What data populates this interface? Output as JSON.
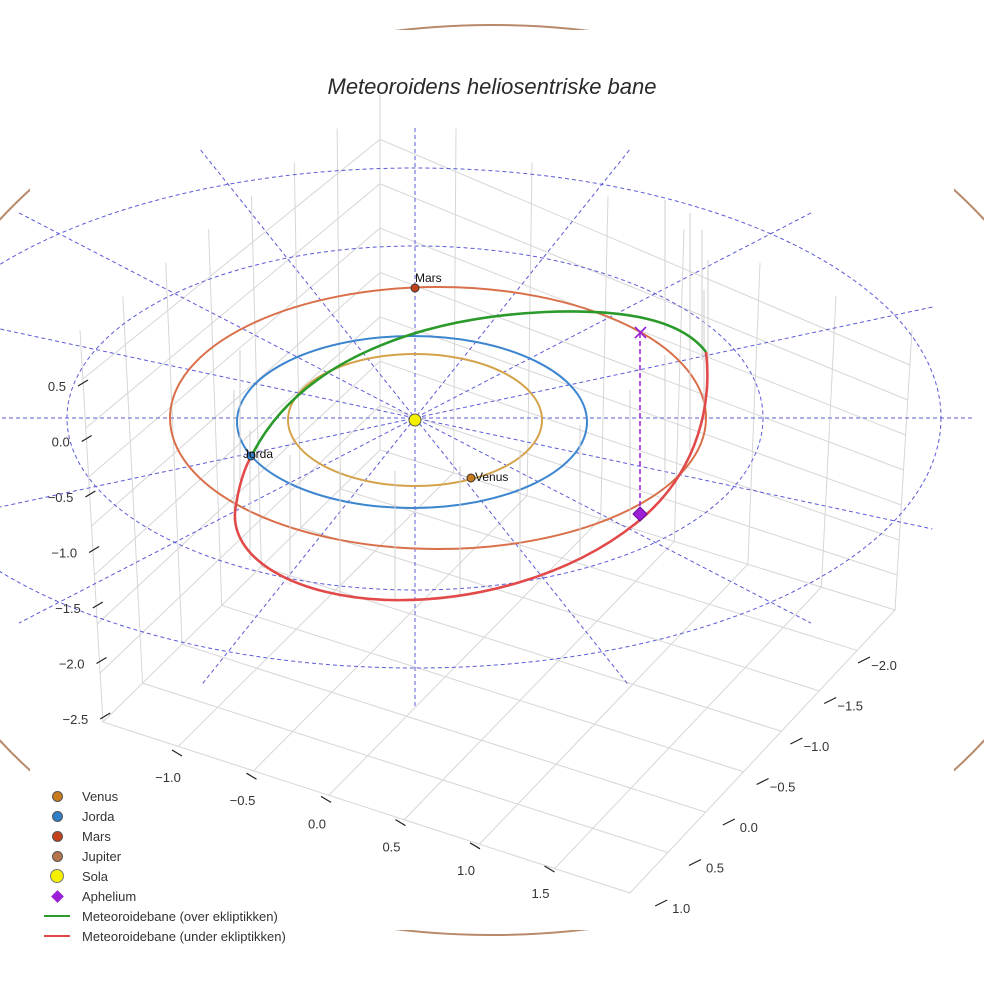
{
  "chart_data": {
    "type": "line3d",
    "title": "Meteoroidens heliosentriske bane",
    "axes": {
      "x_ticks": [
        "−1.0",
        "−0.5",
        "0.0",
        "0.5",
        "1.0",
        "1.5"
      ],
      "y_ticks": [
        "−2.0",
        "−1.5",
        "−1.0",
        "−0.5",
        "0.0",
        "0.5",
        "1.0"
      ],
      "z_ticks": [
        "0.5",
        "0.0",
        "−0.5",
        "−1.0",
        "−1.5",
        "−2.0",
        "−2.5"
      ],
      "grid": true
    },
    "planets": [
      {
        "name": "Venus",
        "label": "Venus",
        "color": "#c97a1c",
        "orbit_color": "#d4a24a",
        "orbit_radius_au": 0.72
      },
      {
        "name": "Jorda",
        "label": "Jorda",
        "color": "#2f7fc8",
        "orbit_color": "#3d86cf",
        "orbit_radius_au": 1.0
      },
      {
        "name": "Mars",
        "label": "Mars",
        "color": "#c4421b",
        "orbit_color": "#d9704a",
        "orbit_radius_au": 1.52
      },
      {
        "name": "Jupiter",
        "label": "",
        "color": "#b5744a",
        "orbit_color": "#b88a6a",
        "orbit_radius_au": 5.2
      }
    ],
    "sun": {
      "name": "Sola",
      "color": "#f5f000"
    },
    "aphelium": {
      "name": "Aphelium",
      "color": "#9b1fd6"
    },
    "series": [
      {
        "name": "Meteoroidebane (over ekliptikken)",
        "color": "#2a9a2a"
      },
      {
        "name": "Meteoroidebane (under ekliptikken)",
        "color": "#e24a4a"
      }
    ],
    "legend_position": "bottom-left"
  },
  "legend": [
    {
      "label": "Venus",
      "kind": "dot",
      "color": "#c97a1c"
    },
    {
      "label": "Jorda",
      "kind": "dot",
      "color": "#2f7fc8"
    },
    {
      "label": "Mars",
      "kind": "dot",
      "color": "#c4421b"
    },
    {
      "label": "Jupiter",
      "kind": "dot",
      "color": "#b5744a"
    },
    {
      "label": "Sola",
      "kind": "bigdot",
      "color": "#f5f000"
    },
    {
      "label": "Aphelium",
      "kind": "diamond",
      "color": "#9b1fd6"
    },
    {
      "label": "Meteoroidebane (over ekliptikken)",
      "kind": "line",
      "color": "#2a9a2a"
    },
    {
      "label": "Meteoroidebane (under ekliptikken)",
      "kind": "line",
      "color": "#e24a4a"
    }
  ]
}
